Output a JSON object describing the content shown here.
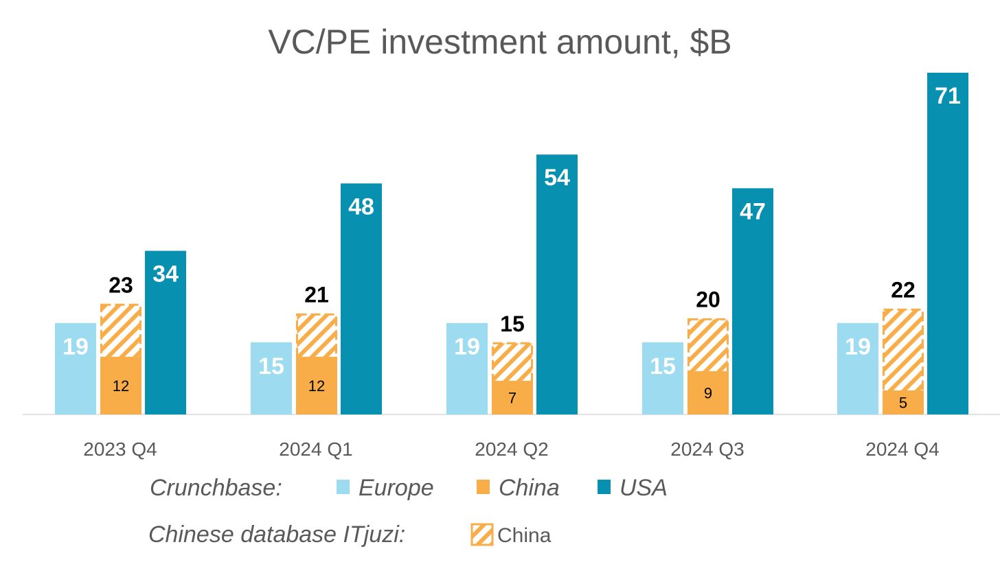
{
  "chart_data": {
    "type": "bar",
    "title": "VC/PE investment amount, $B",
    "categories": [
      "2023 Q4",
      "2024 Q1",
      "2024 Q2",
      "2024 Q3",
      "2024 Q4"
    ],
    "series": [
      {
        "name": "Europe",
        "source": "Crunchbase",
        "color": "#9ddcf0",
        "values": [
          19,
          15,
          19,
          15,
          19
        ]
      },
      {
        "name": "China",
        "source": "Crunchbase",
        "color": "#f8ad48",
        "values": [
          12,
          12,
          7,
          9,
          5
        ]
      },
      {
        "name": "USA",
        "source": "Crunchbase",
        "color": "#0890b0",
        "values": [
          34,
          48,
          54,
          47,
          71
        ]
      },
      {
        "name": "China",
        "source": "Chinese database ITjuzi",
        "color": "#f8ad48",
        "pattern": "hatched",
        "values": [
          23,
          21,
          15,
          20,
          22
        ]
      }
    ],
    "ylim": [
      0,
      72
    ],
    "grid": false,
    "xlabel": "",
    "ylabel": "",
    "legend": {
      "placement": "bottom",
      "row1_label": "Crunchbase:",
      "row1_items": [
        "Europe",
        "China",
        "USA"
      ],
      "row2_label": "Chinese database ITjuzi:",
      "row2_items": [
        "China"
      ]
    }
  }
}
